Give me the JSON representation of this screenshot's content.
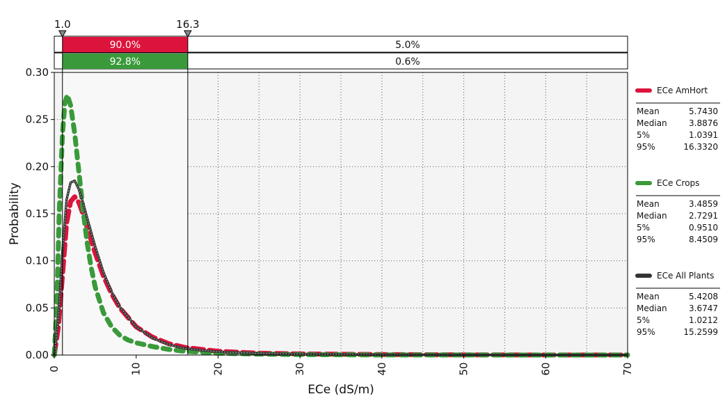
{
  "chart_data": {
    "type": "line",
    "title": "",
    "xlabel": "ECe (dS/m)",
    "ylabel": "Probability",
    "xlim": [
      0,
      70
    ],
    "ylim": [
      0,
      0.3
    ],
    "x_ticks": [
      0,
      10,
      20,
      30,
      40,
      50,
      60,
      70
    ],
    "y_ticks": [
      0.0,
      0.05,
      0.1,
      0.15,
      0.2,
      0.25,
      0.3
    ],
    "y_tick_labels": [
      "0.00",
      "0.05",
      "0.10",
      "0.15",
      "0.20",
      "0.25",
      "0.30"
    ],
    "grid": true,
    "legend_position": "right",
    "markers": {
      "lower": 1.0,
      "upper": 16.3,
      "lower_label": "1.0",
      "upper_label": "16.3"
    },
    "probability_bars": [
      {
        "series": "ECe AmHort",
        "middle": "90.0%",
        "right": "5.0%",
        "color": "#dc143c"
      },
      {
        "series": "ECe Crops",
        "middle": "92.8%",
        "right": "0.6%",
        "color": "#3a9a3a"
      }
    ],
    "series": [
      {
        "name": "ECe AmHort",
        "color": "#dc143c",
        "style": "dashed",
        "x": [
          0,
          0.5,
          1.0,
          1.5,
          2.0,
          2.5,
          3.0,
          3.5,
          4.0,
          5.0,
          6.0,
          7.0,
          8.0,
          10.0,
          12.0,
          14.0,
          16.0,
          18.0,
          20.0,
          25.0,
          30.0,
          40.0,
          50.0,
          60.0,
          70.0
        ],
        "y": [
          0,
          0.03,
          0.085,
          0.14,
          0.163,
          0.168,
          0.162,
          0.15,
          0.136,
          0.108,
          0.084,
          0.065,
          0.05,
          0.03,
          0.019,
          0.012,
          0.008,
          0.006,
          0.004,
          0.002,
          0.0012,
          0.0005,
          0.0002,
          0.0001,
          5e-05
        ]
      },
      {
        "name": "ECe Crops",
        "color": "#3a9a3a",
        "style": "dotted-thick",
        "x": [
          0,
          0.3,
          0.6,
          1.0,
          1.3,
          1.6,
          2.0,
          2.5,
          3.0,
          3.5,
          4.0,
          4.5,
          5.0,
          6.0,
          7.0,
          8.0,
          9.0,
          10.0,
          12.0,
          14.0,
          16.0,
          18.0,
          20.0,
          25.0,
          30.0,
          40.0,
          50.0,
          60.0,
          70.0
        ],
        "y": [
          0,
          0.05,
          0.15,
          0.235,
          0.268,
          0.276,
          0.265,
          0.235,
          0.195,
          0.155,
          0.12,
          0.093,
          0.072,
          0.045,
          0.03,
          0.021,
          0.016,
          0.013,
          0.009,
          0.006,
          0.004,
          0.003,
          0.002,
          0.001,
          0.0005,
          0.0001,
          5e-05,
          2e-05,
          1e-05
        ]
      },
      {
        "name": "ECe All Plants",
        "color": "#333333",
        "style": "solid",
        "x": [
          0,
          0.5,
          1.0,
          1.5,
          2.0,
          2.5,
          3.0,
          3.5,
          4.0,
          5.0,
          6.0,
          7.0,
          8.0,
          10.0,
          12.0,
          14.0,
          16.0,
          18.0,
          20.0,
          25.0,
          30.0,
          40.0,
          50.0,
          60.0,
          70.0
        ],
        "y": [
          0,
          0.04,
          0.11,
          0.165,
          0.183,
          0.185,
          0.176,
          0.162,
          0.146,
          0.115,
          0.088,
          0.067,
          0.051,
          0.03,
          0.018,
          0.011,
          0.007,
          0.005,
          0.0035,
          0.0017,
          0.001,
          0.0004,
          0.0002,
          0.0001,
          5e-05
        ]
      }
    ],
    "legend": [
      {
        "name": "ECe AmHort",
        "color": "#dc143c",
        "stats": [
          {
            "label": "Mean",
            "value": "5.7430"
          },
          {
            "label": "Median",
            "value": "3.8876"
          },
          {
            "label": "5%",
            "value": "1.0391"
          },
          {
            "label": "95%",
            "value": "16.3320"
          }
        ]
      },
      {
        "name": "ECe Crops",
        "color": "#3a9a3a",
        "stats": [
          {
            "label": "Mean",
            "value": "3.4859"
          },
          {
            "label": "Median",
            "value": "2.7291"
          },
          {
            "label": "5%",
            "value": "0.9510"
          },
          {
            "label": "95%",
            "value": "8.4509"
          }
        ]
      },
      {
        "name": "ECe All Plants",
        "color": "#333333",
        "stats": [
          {
            "label": "Mean",
            "value": "5.4208"
          },
          {
            "label": "Median",
            "value": "3.6747"
          },
          {
            "label": "5%",
            "value": "1.0212"
          },
          {
            "label": "95%",
            "value": "15.2599"
          }
        ]
      }
    ]
  }
}
